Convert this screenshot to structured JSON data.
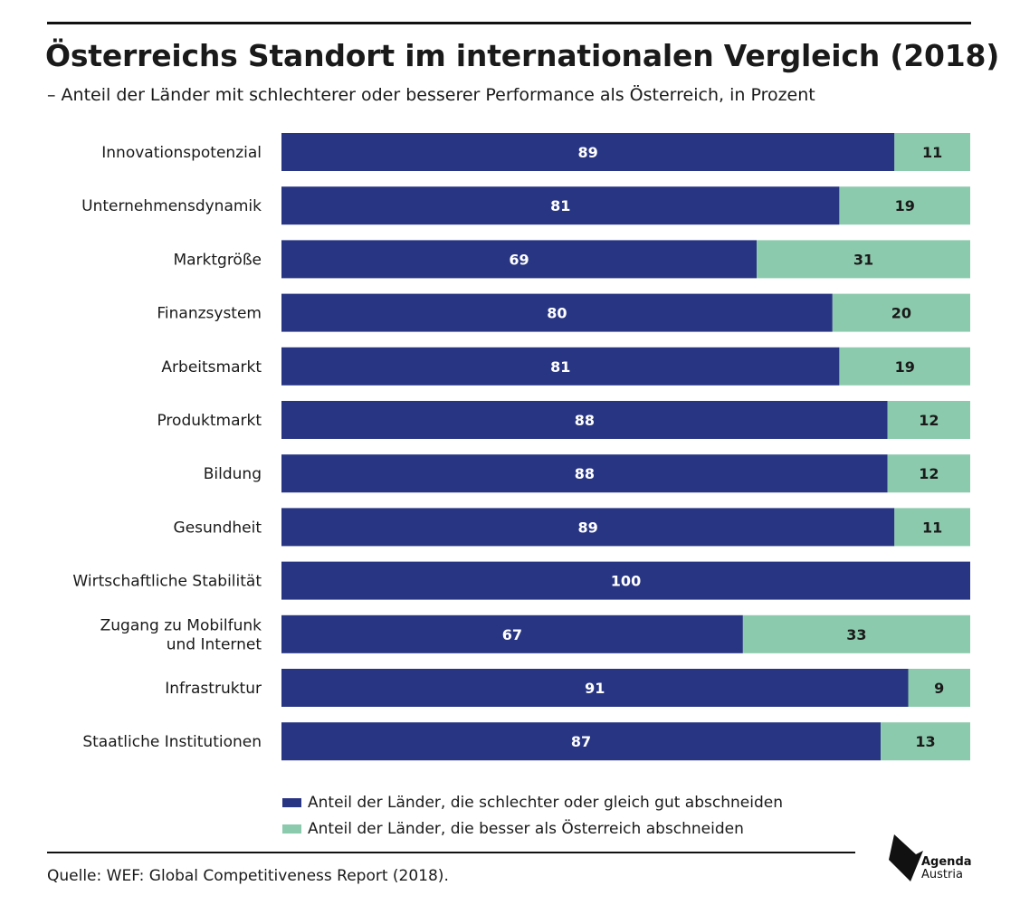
{
  "title": "Österreichs Standort im internationalen Vergleich (2018)",
  "subtitle": "– Anteil der Länder mit schlechterer oder besserer Performance als Österreich, in Prozent",
  "source": "Quelle: WEF: Global Competitiveness Report (2018).",
  "logo": {
    "line1": "Agenda",
    "line2": "Austria"
  },
  "colors": {
    "worse": "#283583",
    "better": "#8ccaad",
    "worse_text": "#ffffff",
    "better_text": "#1a1a1a"
  },
  "chart_data": {
    "type": "bar",
    "orientation": "horizontal",
    "stacked": true,
    "categories": [
      [
        "Innovationspotenzial"
      ],
      [
        "Unternehmensdynamik"
      ],
      [
        "Marktgröße"
      ],
      [
        "Finanzsystem"
      ],
      [
        "Arbeitsmarkt"
      ],
      [
        "Produktmarkt"
      ],
      [
        "Bildung"
      ],
      [
        "Gesundheit"
      ],
      [
        "Wirtschaftliche Stabilität"
      ],
      [
        "Zugang zu Mobilfunk",
        "und Internet"
      ],
      [
        "Infrastruktur"
      ],
      [
        "Staatliche Institutionen"
      ]
    ],
    "series": [
      {
        "name": "Anteil der Länder, die schlechter oder gleich gut abschneiden",
        "values": [
          89,
          81,
          69,
          80,
          81,
          88,
          88,
          89,
          100,
          67,
          91,
          87
        ]
      },
      {
        "name": "Anteil der Länder, die besser als Österreich abschneiden",
        "values": [
          11,
          19,
          31,
          20,
          19,
          12,
          12,
          11,
          0,
          33,
          9,
          13
        ]
      }
    ],
    "xlim": [
      0,
      100
    ],
    "grid": false,
    "legend_position": "bottom"
  }
}
